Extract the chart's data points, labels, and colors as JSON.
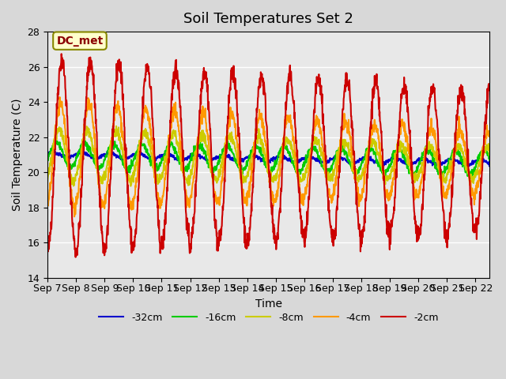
{
  "title": "Soil Temperatures Set 2",
  "xlabel": "Time",
  "ylabel": "Soil Temperature (C)",
  "ylim": [
    14,
    28
  ],
  "xlim": [
    0,
    15.5
  ],
  "annotation": "DC_met",
  "xtick_labels": [
    "Sep 7",
    "Sep 8",
    "Sep 9",
    "Sep 10",
    "Sep 11",
    "Sep 12",
    "Sep 13",
    "Sep 14",
    "Sep 15",
    "Sep 16",
    "Sep 17",
    "Sep 18",
    "Sep 19",
    "Sep 20",
    "Sep 21",
    "Sep 22"
  ],
  "legend_labels": [
    "-32cm",
    "-16cm",
    "-8cm",
    "-4cm",
    "-2cm"
  ],
  "line_colors": [
    "#0000cc",
    "#00cc00",
    "#cccc00",
    "#ff9900",
    "#cc0000"
  ],
  "line_widths": [
    1.5,
    1.5,
    1.5,
    1.5,
    1.5
  ],
  "bg_color": "#d8d8d8",
  "plot_bg": "#e8e8e8",
  "title_fontsize": 13,
  "axis_fontsize": 10,
  "tick_fontsize": 9,
  "yticks": [
    14,
    16,
    18,
    20,
    22,
    24,
    26,
    28
  ]
}
